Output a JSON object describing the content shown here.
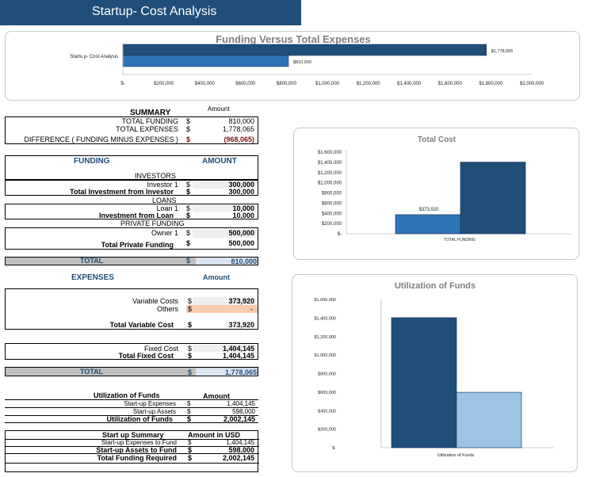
{
  "header": {
    "title": "Startup- Cost Analysis"
  },
  "funding_chart": {
    "title": "Funding Versus Total Expenses",
    "category": "Startu p- Cost Analysis",
    "funding_label": "$1,778,065",
    "expense_label": "$810,000",
    "ticks": [
      "$-",
      "$200,000",
      "$400,000",
      "$600,000",
      "$800,000",
      "$1,000,000",
      "$1,200,000",
      "$1,400,000",
      "$1,600,000",
      "$1,800,000",
      "$2,000,000"
    ]
  },
  "summary": {
    "title": "SUMMARY",
    "amount_header": "Amount",
    "rows": [
      {
        "label": "TOTAL FUNDING",
        "cur": "$",
        "value": "810,000"
      },
      {
        "label": "TOTAL EXPENSES",
        "cur": "$",
        "value": "1,778,065"
      },
      {
        "label": "DIFFERENCE ( FUNDING MINUS EXPENSES )",
        "cur": "$",
        "value": "(968,065)"
      }
    ]
  },
  "funding": {
    "header": "FUNDING",
    "amount_header": "AMOUNT",
    "investors_label": "INVESTORS",
    "investor1_label": "Investor 1",
    "investor1_cur": "$",
    "investor1_value": "300,000",
    "total_investment_label": "Total Investment from Investor",
    "total_investment_cur": "$",
    "total_investment_value": "300,000",
    "loans_label": "LOANS",
    "loan1_label": "Loan 1",
    "loan1_cur": "$",
    "loan1_value": "10,000",
    "loan_total_label": "Investment from Loan",
    "loan_total_cur": "$",
    "loan_total_value": "10,000",
    "private_label": "PRIVATE FUNDING",
    "owner1_label": "Owner 1",
    "owner1_cur": "$",
    "owner1_value": "500,000",
    "private_total_label": "Total Private Funding",
    "private_total_cur": "$",
    "private_total_value": "500,000",
    "total_label": "TOTAL",
    "total_cur": "$",
    "total_value": "810,000"
  },
  "expenses": {
    "header": "EXPENSES",
    "amount_header": "Amount",
    "variable_label": "Variable Costs",
    "variable_cur": "$",
    "variable_value": "373,920",
    "others_label": "Others",
    "others_cur": "$",
    "others_value": "-",
    "total_variable_label": "Total Variable Cost",
    "total_variable_cur": "$",
    "total_variable_value": "373,920",
    "fixed_label": "Fixed Cost",
    "fixed_cur": "$",
    "fixed_value": "1,404,145",
    "total_fixed_label": "Total Fixed Cost",
    "total_fixed_cur": "$",
    "total_fixed_value": "1,404,145",
    "total_label": "TOTAL",
    "total_cur": "$",
    "total_value": "1,778,065"
  },
  "utilization": {
    "title": "Utilization of Funds",
    "amount_header": "Amount",
    "rows": [
      {
        "label": "Start-up Expenses",
        "cur": "$",
        "value": "1,404,145"
      },
      {
        "label": "Start-up Assets",
        "cur": "$",
        "value": "598,000"
      }
    ],
    "total_label": "Utilization of Funds",
    "total_cur": "$",
    "total_value": "2,002,145"
  },
  "startup_summary": {
    "title": "Start up Summary",
    "amount_header": "Amount in USD",
    "rows": [
      {
        "label": "Start-up Expenses to Fund",
        "cur": "$",
        "value": "1,404,145"
      },
      {
        "label": "Start-up Assets to Fund",
        "cur": "$",
        "value": "598,000"
      },
      {
        "label": "Total Funding Required",
        "cur": "$",
        "value": "2,002,145"
      }
    ]
  },
  "total_cost_chart": {
    "title": "Total Cost",
    "ticks": [
      "$1,600,000",
      "$1,400,000",
      "$1,200,000",
      "$1,000,000",
      "$800,000",
      "$600,000",
      "$400,000",
      "$200,000",
      "$-"
    ],
    "bar_label": "$373,920",
    "category": "TOTAL FUNDING"
  },
  "utilization_chart": {
    "title": "Utilization of Funds",
    "ticks": [
      "$1,600,000",
      "$1,400,000",
      "$1,200,000",
      "$1,000,000",
      "$800,000",
      "$600,000",
      "$400,000",
      "$200,000",
      "$-"
    ],
    "category": "Utilization of Funds"
  },
  "chart_data": [
    {
      "type": "bar",
      "orientation": "horizontal",
      "title": "Funding Versus Total Expenses",
      "categories": [
        "Startu p- Cost Analysis"
      ],
      "series": [
        {
          "values": [
            1778065
          ]
        },
        {
          "values": [
            810000
          ]
        }
      ],
      "data_labels": [
        "$1,778,065",
        "$810,000"
      ],
      "xlim": [
        0,
        2000000
      ],
      "colors": [
        "#1f4e79",
        "#2e75b6"
      ]
    },
    {
      "type": "bar",
      "title": "Total Cost",
      "categories": [
        "TOTAL FUNDING"
      ],
      "series": [
        {
          "values": [
            373920
          ]
        },
        {
          "values": [
            1404145
          ]
        }
      ],
      "data_labels": [
        "$373,920"
      ],
      "ylim": [
        0,
        1600000
      ],
      "colors": [
        "#2e75b6",
        "#1f4e79"
      ]
    },
    {
      "type": "bar",
      "title": "Utilization of Funds",
      "categories": [
        "Utilization of Funds"
      ],
      "series": [
        {
          "values": [
            1404145
          ]
        },
        {
          "values": [
            598000
          ]
        }
      ],
      "ylim": [
        0,
        1600000
      ],
      "colors": [
        "#1f4e79",
        "#9dc3e6"
      ]
    }
  ]
}
